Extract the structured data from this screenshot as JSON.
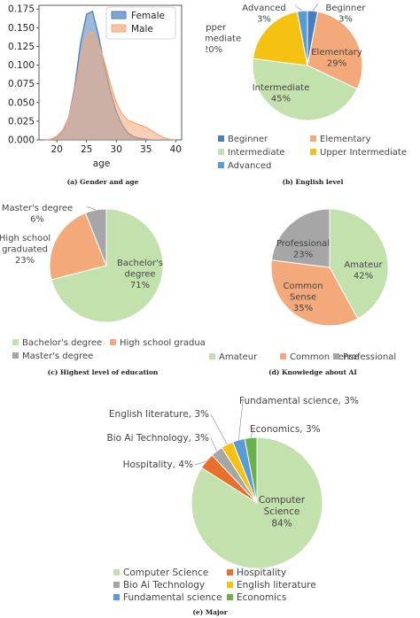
{
  "colors": {
    "blue": "#4a7fbd",
    "orange": "#f4a97a",
    "green": "#c3e1ad",
    "gray": "#a6a6a6",
    "yellow": "#f6c212",
    "lightblue": "#5b9bd5",
    "red_orange": "#e8702a",
    "dark_green": "#6ab04c"
  },
  "captions": {
    "a": "(a) Gender and age",
    "b": "(b) English level",
    "c": "(c) Highest level of education",
    "d": "(d) Knowledge about AI",
    "e": "(e) Major"
  },
  "chart_data": [
    {
      "id": "a",
      "type": "area",
      "xlabel": "age",
      "ylabel": "",
      "xlim": [
        17,
        41
      ],
      "ylim": [
        0,
        0.18
      ],
      "xticks": [
        20,
        25,
        30,
        35,
        40
      ],
      "yticks": [
        0.0,
        0.025,
        0.05,
        0.075,
        0.1,
        0.125,
        0.15,
        0.175
      ],
      "ytick_labels": [
        "0.000",
        "0.025",
        "0.050",
        "0.075",
        "0.100",
        "0.125",
        "0.150",
        "0.175"
      ],
      "legend": "top-right",
      "x": [
        18,
        19,
        20,
        21,
        22,
        23,
        24,
        25,
        26,
        27,
        28,
        29,
        30,
        31,
        32,
        33,
        34,
        35,
        36,
        37,
        38,
        39,
        40
      ],
      "series": [
        {
          "name": "Female",
          "color": "#4a7fbd",
          "values": [
            0.0,
            0.001,
            0.004,
            0.012,
            0.03,
            0.07,
            0.13,
            0.168,
            0.172,
            0.14,
            0.1,
            0.065,
            0.038,
            0.02,
            0.009,
            0.004,
            0.002,
            0.001,
            0.0,
            0.0,
            0.0,
            0.0,
            0.0
          ]
        },
        {
          "name": "Male",
          "color": "#f4a97a",
          "values": [
            0.0,
            0.001,
            0.005,
            0.013,
            0.03,
            0.065,
            0.11,
            0.14,
            0.145,
            0.13,
            0.105,
            0.075,
            0.05,
            0.034,
            0.026,
            0.023,
            0.02,
            0.017,
            0.012,
            0.007,
            0.003,
            0.001,
            0.0
          ]
        }
      ]
    },
    {
      "id": "b",
      "type": "pie",
      "legend": "bottom",
      "slices": [
        {
          "label": "Beginner",
          "value": 3,
          "pct": "3%",
          "color": "#4a7fbd",
          "text": "Beginner",
          "text2": "3%"
        },
        {
          "label": "Elementary",
          "value": 29,
          "pct": "29%",
          "color": "#f4a97a",
          "text": "Elementary",
          "text2": "29%"
        },
        {
          "label": "Intermediate",
          "value": 45,
          "pct": "45%",
          "color": "#c3e1ad",
          "text": "Intermediate",
          "text2": "45%"
        },
        {
          "label": "Upper Intermediate",
          "value": 20,
          "pct": "20%",
          "color": "#f6c212",
          "text": "Upper Intermediate",
          "text2": "20%"
        },
        {
          "label": "Advanced",
          "value": 3,
          "pct": "3%",
          "color": "#5b9bd5",
          "text": "Advanced",
          "text2": "3%"
        }
      ]
    },
    {
      "id": "c",
      "type": "pie",
      "legend": "bottom",
      "slices": [
        {
          "label": "Bachelor's degree",
          "value": 71,
          "pct": "71%",
          "color": "#c3e1ad"
        },
        {
          "label": "High school graduated",
          "value": 23,
          "pct": "23%",
          "color": "#f4a97a"
        },
        {
          "label": "Master's degree",
          "value": 6,
          "pct": "6%",
          "color": "#a6a6a6"
        }
      ]
    },
    {
      "id": "d",
      "type": "pie",
      "legend": "bottom",
      "slices": [
        {
          "label": "Amateur",
          "value": 42,
          "pct": "42%",
          "color": "#c3e1ad"
        },
        {
          "label": "Common Sense",
          "value": 35,
          "pct": "35%",
          "color": "#f4a97a"
        },
        {
          "label": "Professional",
          "value": 23,
          "pct": "23%",
          "color": "#a6a6a6"
        }
      ]
    },
    {
      "id": "e",
      "type": "pie",
      "legend": "bottom",
      "slices": [
        {
          "label": "Computer Science",
          "value": 84,
          "pct": "84%",
          "color": "#c3e1ad"
        },
        {
          "label": "Hospitality",
          "value": 4,
          "pct": "4%",
          "color": "#e8702a"
        },
        {
          "label": "Bio Ai Technology",
          "value": 3,
          "pct": "3%",
          "color": "#a6a6a6"
        },
        {
          "label": "English literature",
          "value": 3,
          "pct": "3%",
          "color": "#f6c212"
        },
        {
          "label": "Fundamental science",
          "value": 3,
          "pct": "3%",
          "color": "#5b9bd5"
        },
        {
          "label": "Economics",
          "value": 3,
          "pct": "3%",
          "color": "#6ab04c"
        }
      ]
    }
  ]
}
